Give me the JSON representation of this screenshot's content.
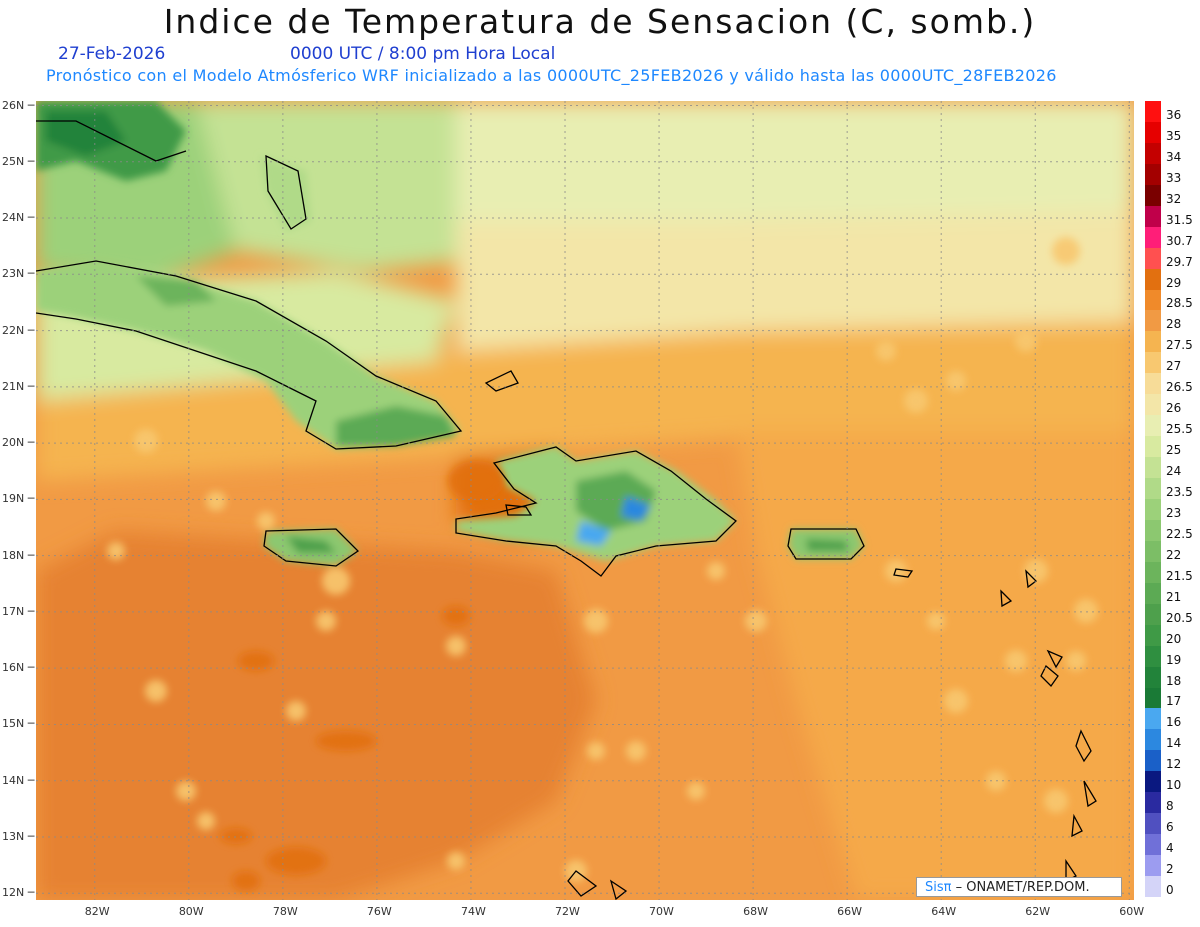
{
  "title": "Indice de Temperatura de Sensacion (C, somb.)",
  "date_label": "27-Feb-2026",
  "time_label": "0000 UTC / 8:00 pm Hora Local",
  "run_label": "Pronóstico con el Modelo Atmósferico WRF inicializado a las 0000UTC_25FEB2026 y válido hasta las  0000UTC_28FEB2026",
  "credit": {
    "logo": "Sisπ",
    "text": "– ONAMET/REP.DOM."
  },
  "map": {
    "lon_range": [
      -83.25,
      -59.9
    ],
    "lat_range": [
      11.88,
      26.08
    ],
    "lat_labels": [
      "26N",
      "25N",
      "24N",
      "23N",
      "22N",
      "21N",
      "20N",
      "19N",
      "18N",
      "17N",
      "16N",
      "15N",
      "14N",
      "13N",
      "12N"
    ],
    "lat_values": [
      26,
      25,
      24,
      23,
      22,
      21,
      20,
      19,
      18,
      17,
      16,
      15,
      14,
      13,
      12
    ],
    "lon_labels": [
      "82W",
      "80W",
      "78W",
      "76W",
      "74W",
      "72W",
      "70W",
      "68W",
      "66W",
      "64W",
      "62W",
      "60W"
    ],
    "lon_values": [
      -82,
      -80,
      -78,
      -76,
      -74,
      -72,
      -70,
      -68,
      -66,
      -64,
      -62,
      -60
    ],
    "background_color": "#f19a44"
  },
  "colorbar": {
    "labels": [
      "36",
      "35",
      "34",
      "33",
      "32",
      "31.5",
      "30.7",
      "29.7",
      "29",
      "28.5",
      "28",
      "27.5",
      "27",
      "26.5",
      "26",
      "25.5",
      "25",
      "24",
      "23.5",
      "23",
      "22.5",
      "22",
      "21.5",
      "21",
      "20.5",
      "20",
      "19",
      "18",
      "17",
      "16",
      "14",
      "12",
      "10",
      "8",
      "6",
      "4",
      "2",
      "0"
    ],
    "colors": [
      "#ff1010",
      "#e60000",
      "#c40000",
      "#a30000",
      "#7a0000",
      "#c0004a",
      "#ff1e78",
      "#ff5050",
      "#e27010",
      "#f08a2a",
      "#f19a44",
      "#f5b450",
      "#f8c870",
      "#f7dc98",
      "#f3e6a8",
      "#e8eeb2",
      "#d8eaa0",
      "#c4e294",
      "#b0da88",
      "#9cd17a",
      "#8cc870",
      "#7cbe66",
      "#6cb45c",
      "#5caa54",
      "#4ea04c",
      "#3f9a46",
      "#2f8f40",
      "#22833a",
      "#1a7a36",
      "#4aa8f0",
      "#2c88e0",
      "#1a60c8",
      "#0a1880",
      "#2a2aa0",
      "#5050c0",
      "#7070d8",
      "#9c9cf0",
      "#d4d4f8"
    ]
  }
}
